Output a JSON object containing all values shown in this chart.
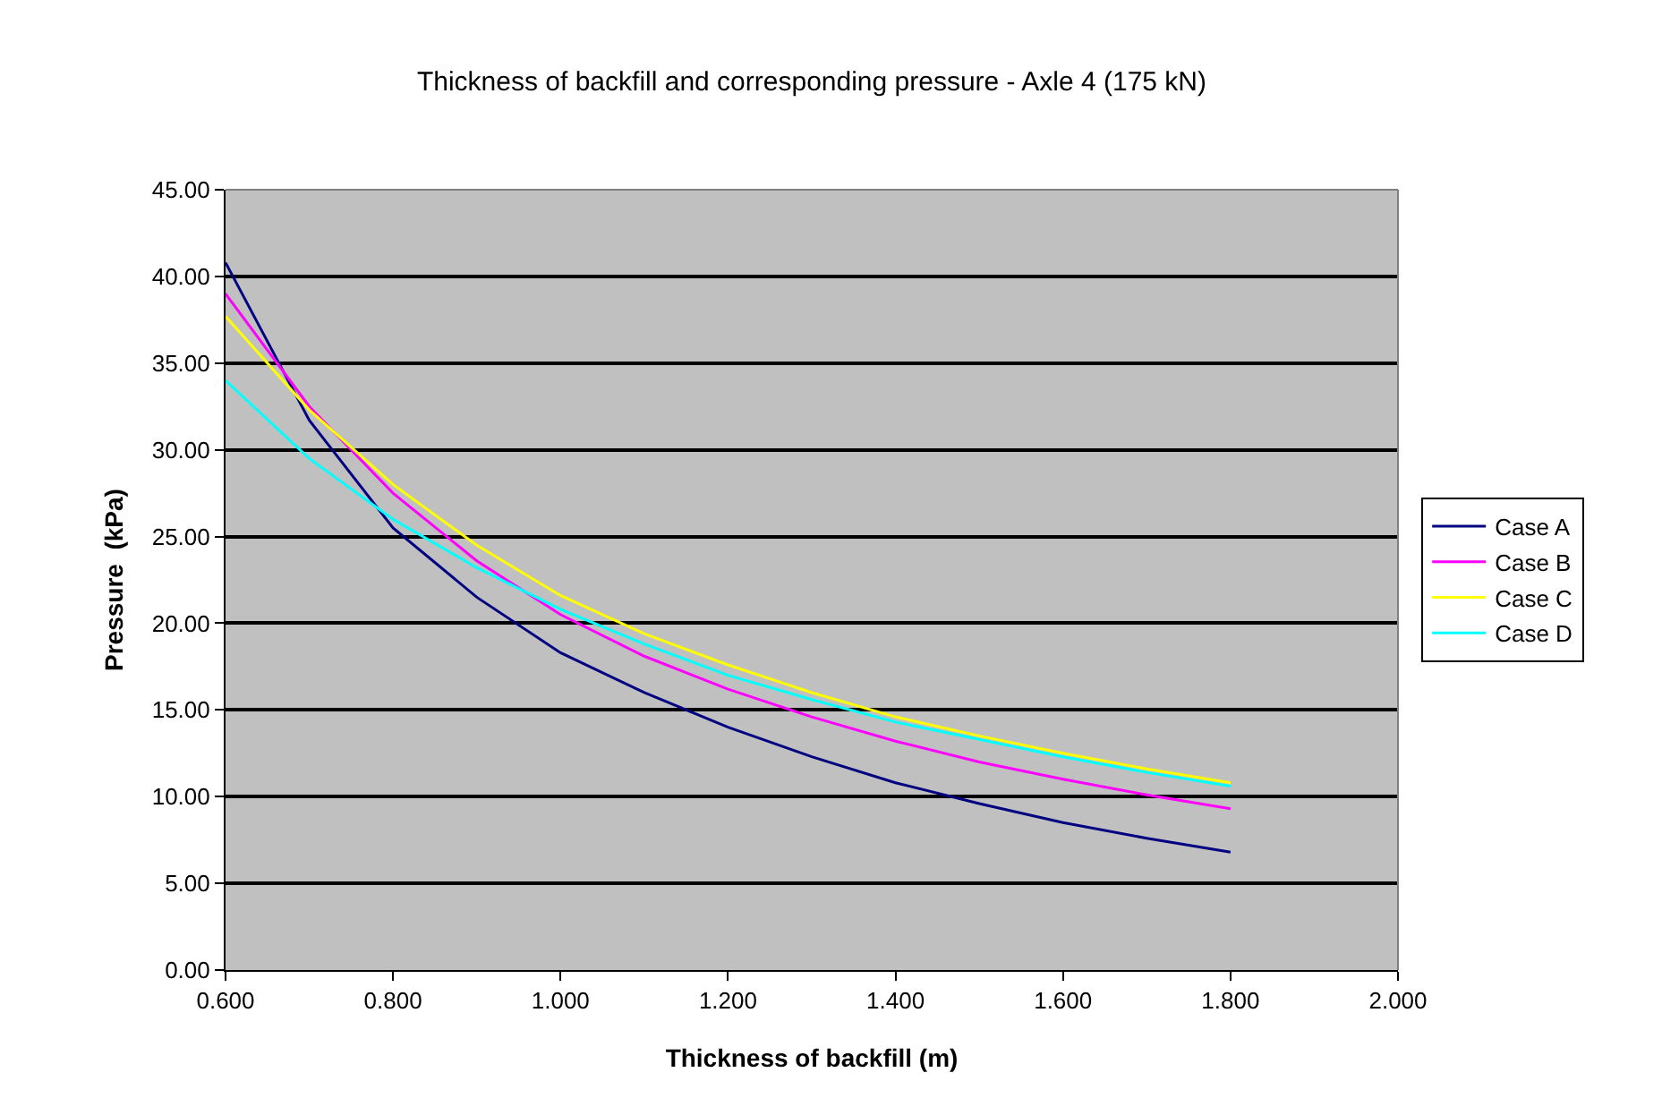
{
  "chart_data": {
    "type": "line",
    "title": "Thickness of backfill and corresponding pressure - Axle 4 (175 kN)",
    "xlabel": "Thickness of backfill (m)",
    "ylabel": "Pressure  (kPa)",
    "x": [
      0.6,
      0.7,
      0.8,
      0.9,
      1.0,
      1.1,
      1.2,
      1.3,
      1.4,
      1.5,
      1.6,
      1.7,
      1.8
    ],
    "series": [
      {
        "name": "Case A",
        "color": "#000080",
        "values": [
          40.8,
          31.7,
          25.5,
          21.5,
          18.3,
          16.0,
          14.0,
          12.3,
          10.8,
          9.6,
          8.5,
          7.6,
          6.8
        ]
      },
      {
        "name": "Case B",
        "color": "#ff00ff",
        "values": [
          39.0,
          32.5,
          27.5,
          23.6,
          20.5,
          18.1,
          16.2,
          14.6,
          13.2,
          12.0,
          11.0,
          10.1,
          9.3
        ]
      },
      {
        "name": "Case C",
        "color": "#ffff00",
        "values": [
          37.7,
          32.3,
          28.0,
          24.5,
          21.6,
          19.4,
          17.6,
          16.0,
          14.6,
          13.5,
          12.5,
          11.6,
          10.8
        ]
      },
      {
        "name": "Case D",
        "color": "#00ffff",
        "values": [
          34.0,
          29.5,
          26.0,
          23.2,
          20.8,
          18.8,
          17.0,
          15.6,
          14.3,
          13.3,
          12.3,
          11.4,
          10.6
        ]
      }
    ],
    "xlim": [
      0.6,
      2.0
    ],
    "xticks": [
      {
        "value": 0.6,
        "label": "0.600"
      },
      {
        "value": 0.8,
        "label": "0.800"
      },
      {
        "value": 1.0,
        "label": "1.000"
      },
      {
        "value": 1.2,
        "label": "1.200"
      },
      {
        "value": 1.4,
        "label": "1.400"
      },
      {
        "value": 1.6,
        "label": "1.600"
      },
      {
        "value": 1.8,
        "label": "1.800"
      },
      {
        "value": 2.0,
        "label": "2.000"
      }
    ],
    "ylim": [
      0,
      45
    ],
    "yticks": [
      {
        "value": 0,
        "label": "0.00"
      },
      {
        "value": 5,
        "label": "5.00"
      },
      {
        "value": 10,
        "label": "10.00"
      },
      {
        "value": 15,
        "label": "15.00"
      },
      {
        "value": 20,
        "label": "20.00"
      },
      {
        "value": 25,
        "label": "25.00"
      },
      {
        "value": 30,
        "label": "30.00"
      },
      {
        "value": 35,
        "label": "35.00"
      },
      {
        "value": 40,
        "label": "40.00"
      },
      {
        "value": 45,
        "label": "45.00"
      }
    ],
    "grid": "y",
    "legend": "right",
    "marker": "none",
    "line_style": "solid"
  }
}
